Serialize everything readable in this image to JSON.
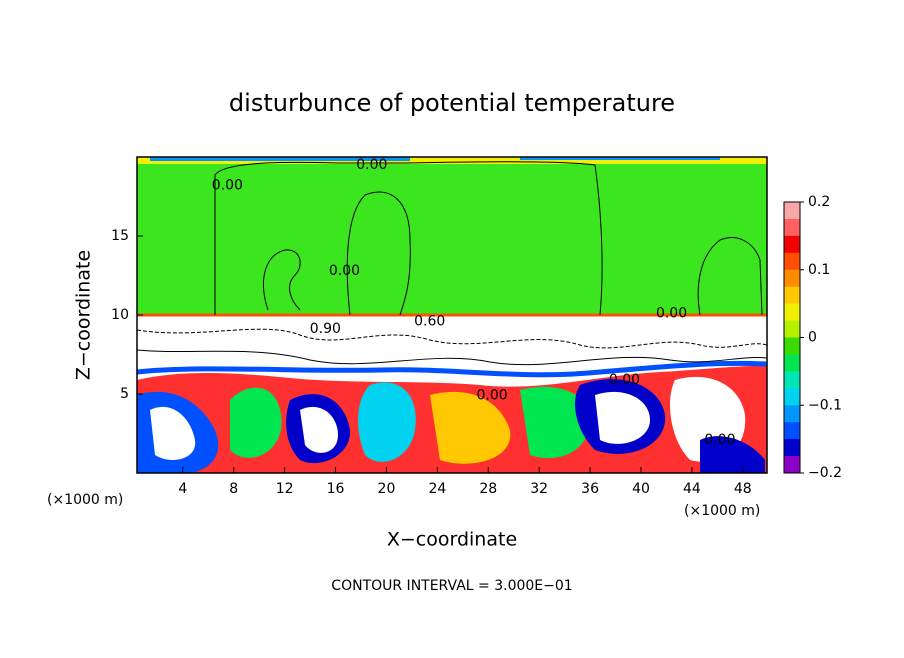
{
  "chart_data": {
    "type": "contour",
    "title": "disturbunce of potential temperature",
    "x_label": "X−coordinate",
    "y_label": "Z−coordinate",
    "x_unit": "(×1000 m)",
    "y_unit": "(×1000 m)",
    "footer": "CONTOUR INTERVAL = 3.000E−01",
    "xlim": [
      0.4,
      49.9
    ],
    "ylim": [
      0,
      20
    ],
    "xticks": [
      4,
      8,
      12,
      16,
      20,
      24,
      28,
      32,
      36,
      40,
      44,
      48
    ],
    "yticks": [
      5,
      10,
      15
    ],
    "contour_labels": [
      {
        "text": "0.00",
        "x": 18.85,
        "y": 19.5
      },
      {
        "text": "0.00",
        "x": 7.5,
        "y": 18.2
      },
      {
        "text": "0.00",
        "x": 16.7,
        "y": 12.8
      },
      {
        "text": "0.60",
        "x": 23.4,
        "y": 9.6
      },
      {
        "text": "0.00",
        "x": 42.4,
        "y": 10.1
      },
      {
        "text": "0.90",
        "x": 15.2,
        "y": 9.1
      },
      {
        "text": "0.00",
        "x": 28.3,
        "y": 4.9
      },
      {
        "text": "0.00",
        "x": 38.7,
        "y": 5.9
      },
      {
        "text": "0.00",
        "x": 46.2,
        "y": 2.1
      }
    ],
    "colorbar": {
      "lim": [
        -0.2,
        0.2
      ],
      "ticks": [
        {
          "value": 0.2,
          "label": "0.2"
        },
        {
          "value": 0.1,
          "label": "0.1"
        },
        0,
        {
          "value": -0.1,
          "label": "−0.1"
        },
        {
          "value": -0.2,
          "label": "−0.2"
        }
      ],
      "colors": [
        "#f8a8a8",
        "#ff6060",
        "#f00000",
        "#ff5000",
        "#ff8c00",
        "#ffc800",
        "#f0f000",
        "#b4f000",
        "#3cdc00",
        "#00e650",
        "#00e6b4",
        "#00d2f0",
        "#0096ff",
        "#0050ff",
        "#0000c8",
        "#8c00c8"
      ]
    }
  }
}
